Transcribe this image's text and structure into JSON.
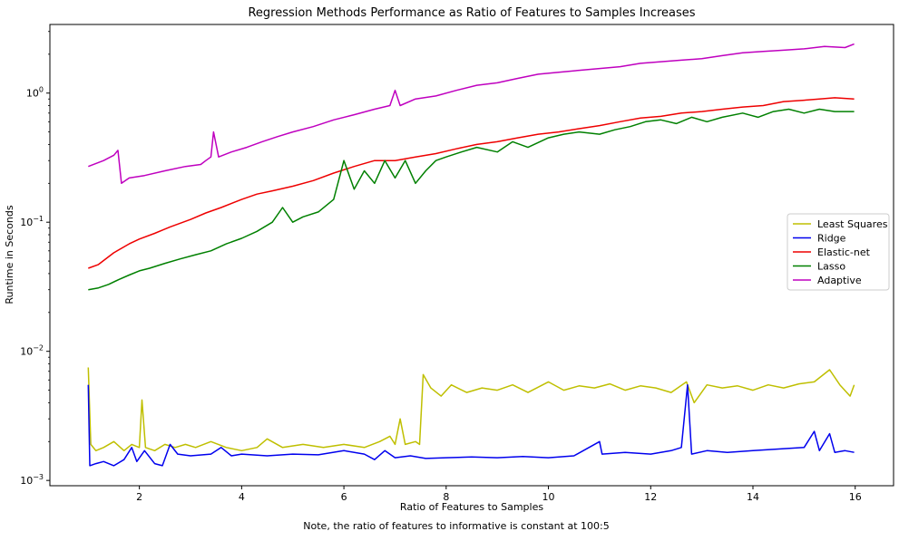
{
  "chart_data": {
    "type": "line",
    "title": "Regression Methods Performance as Ratio of Features to Samples Increases",
    "xlabel": "Ratio of Features to Samples",
    "ylabel": "Runtime in Seconds",
    "note": "Note, the ratio of features to informative is constant at 100:5",
    "xlim": [
      0.25,
      16.75
    ],
    "ylim": [
      0.00091,
      3.4
    ],
    "yscale": "log",
    "legend_position": "center-right",
    "x_ticks": [
      2,
      4,
      6,
      8,
      10,
      12,
      14,
      16
    ],
    "x_tick_labels": [
      "2",
      "4",
      "6",
      "8",
      "10",
      "12",
      "14",
      "16"
    ],
    "y_ticks": [
      0.001,
      0.01,
      0.1,
      1
    ],
    "y_tick_labels": [
      {
        "base": "10",
        "exp": "−3"
      },
      {
        "base": "10",
        "exp": "−2"
      },
      {
        "base": "10",
        "exp": "−1"
      },
      {
        "base": "10",
        "exp": "0"
      }
    ],
    "series": [
      {
        "name": "Least Squares",
        "color": "#bfbf00",
        "points": [
          [
            1.0,
            0.0075
          ],
          [
            1.05,
            0.0019
          ],
          [
            1.15,
            0.0017
          ],
          [
            1.3,
            0.0018
          ],
          [
            1.5,
            0.002
          ],
          [
            1.7,
            0.0017
          ],
          [
            1.85,
            0.0019
          ],
          [
            2.0,
            0.0018
          ],
          [
            2.05,
            0.0042
          ],
          [
            2.12,
            0.0018
          ],
          [
            2.3,
            0.0017
          ],
          [
            2.5,
            0.0019
          ],
          [
            2.7,
            0.0018
          ],
          [
            2.9,
            0.0019
          ],
          [
            3.1,
            0.0018
          ],
          [
            3.4,
            0.002
          ],
          [
            3.7,
            0.0018
          ],
          [
            4.0,
            0.0017
          ],
          [
            4.3,
            0.0018
          ],
          [
            4.5,
            0.0021
          ],
          [
            4.8,
            0.0018
          ],
          [
            5.2,
            0.0019
          ],
          [
            5.6,
            0.0018
          ],
          [
            6.0,
            0.0019
          ],
          [
            6.4,
            0.0018
          ],
          [
            6.7,
            0.002
          ],
          [
            6.9,
            0.0022
          ],
          [
            7.0,
            0.0019
          ],
          [
            7.1,
            0.003
          ],
          [
            7.2,
            0.0019
          ],
          [
            7.4,
            0.002
          ],
          [
            7.48,
            0.0019
          ],
          [
            7.55,
            0.0066
          ],
          [
            7.7,
            0.0052
          ],
          [
            7.9,
            0.0045
          ],
          [
            8.1,
            0.0055
          ],
          [
            8.4,
            0.0048
          ],
          [
            8.7,
            0.0052
          ],
          [
            9.0,
            0.005
          ],
          [
            9.3,
            0.0055
          ],
          [
            9.6,
            0.0048
          ],
          [
            10.0,
            0.0058
          ],
          [
            10.3,
            0.005
          ],
          [
            10.6,
            0.0054
          ],
          [
            10.9,
            0.0052
          ],
          [
            11.2,
            0.0056
          ],
          [
            11.5,
            0.005
          ],
          [
            11.8,
            0.0054
          ],
          [
            12.1,
            0.0052
          ],
          [
            12.4,
            0.0048
          ],
          [
            12.7,
            0.0058
          ],
          [
            12.85,
            0.004
          ],
          [
            13.1,
            0.0055
          ],
          [
            13.4,
            0.0052
          ],
          [
            13.7,
            0.0054
          ],
          [
            14.0,
            0.005
          ],
          [
            14.3,
            0.0055
          ],
          [
            14.6,
            0.0052
          ],
          [
            14.9,
            0.0056
          ],
          [
            15.2,
            0.0058
          ],
          [
            15.5,
            0.0072
          ],
          [
            15.7,
            0.0055
          ],
          [
            15.9,
            0.0045
          ],
          [
            15.98,
            0.0055
          ]
        ]
      },
      {
        "name": "Ridge",
        "color": "#0000ee",
        "points": [
          [
            1.0,
            0.0055
          ],
          [
            1.03,
            0.0013
          ],
          [
            1.15,
            0.00135
          ],
          [
            1.3,
            0.0014
          ],
          [
            1.5,
            0.0013
          ],
          [
            1.7,
            0.00145
          ],
          [
            1.85,
            0.0018
          ],
          [
            1.95,
            0.0014
          ],
          [
            2.1,
            0.0017
          ],
          [
            2.3,
            0.00135
          ],
          [
            2.45,
            0.0013
          ],
          [
            2.6,
            0.0019
          ],
          [
            2.75,
            0.0016
          ],
          [
            3.0,
            0.00155
          ],
          [
            3.4,
            0.0016
          ],
          [
            3.6,
            0.0018
          ],
          [
            3.8,
            0.00155
          ],
          [
            4.0,
            0.0016
          ],
          [
            4.5,
            0.00155
          ],
          [
            5.0,
            0.0016
          ],
          [
            5.5,
            0.00158
          ],
          [
            6.0,
            0.0017
          ],
          [
            6.4,
            0.0016
          ],
          [
            6.6,
            0.00145
          ],
          [
            6.8,
            0.0017
          ],
          [
            7.0,
            0.0015
          ],
          [
            7.3,
            0.00155
          ],
          [
            7.6,
            0.00148
          ],
          [
            8.0,
            0.0015
          ],
          [
            8.5,
            0.00152
          ],
          [
            9.0,
            0.0015
          ],
          [
            9.5,
            0.00153
          ],
          [
            10.0,
            0.0015
          ],
          [
            10.5,
            0.00155
          ],
          [
            11.0,
            0.002
          ],
          [
            11.05,
            0.0016
          ],
          [
            11.5,
            0.00165
          ],
          [
            12.0,
            0.0016
          ],
          [
            12.4,
            0.0017
          ],
          [
            12.6,
            0.0018
          ],
          [
            12.72,
            0.0055
          ],
          [
            12.8,
            0.0016
          ],
          [
            13.1,
            0.0017
          ],
          [
            13.5,
            0.00165
          ],
          [
            14.0,
            0.0017
          ],
          [
            14.5,
            0.00175
          ],
          [
            15.0,
            0.0018
          ],
          [
            15.2,
            0.0024
          ],
          [
            15.3,
            0.0017
          ],
          [
            15.5,
            0.0023
          ],
          [
            15.6,
            0.00165
          ],
          [
            15.8,
            0.0017
          ],
          [
            15.98,
            0.00165
          ]
        ]
      },
      {
        "name": "Elastic-net",
        "color": "#ee0000",
        "points": [
          [
            1.0,
            0.044
          ],
          [
            1.2,
            0.047
          ],
          [
            1.5,
            0.058
          ],
          [
            1.8,
            0.068
          ],
          [
            2.0,
            0.074
          ],
          [
            2.3,
            0.082
          ],
          [
            2.6,
            0.092
          ],
          [
            3.0,
            0.105
          ],
          [
            3.3,
            0.118
          ],
          [
            3.6,
            0.13
          ],
          [
            4.0,
            0.15
          ],
          [
            4.3,
            0.165
          ],
          [
            4.6,
            0.175
          ],
          [
            5.0,
            0.19
          ],
          [
            5.4,
            0.21
          ],
          [
            5.8,
            0.24
          ],
          [
            6.2,
            0.27
          ],
          [
            6.6,
            0.3
          ],
          [
            7.0,
            0.3
          ],
          [
            7.4,
            0.32
          ],
          [
            7.8,
            0.34
          ],
          [
            8.2,
            0.37
          ],
          [
            8.6,
            0.4
          ],
          [
            9.0,
            0.42
          ],
          [
            9.4,
            0.45
          ],
          [
            9.8,
            0.48
          ],
          [
            10.2,
            0.5
          ],
          [
            10.6,
            0.53
          ],
          [
            11.0,
            0.56
          ],
          [
            11.4,
            0.6
          ],
          [
            11.8,
            0.64
          ],
          [
            12.2,
            0.66
          ],
          [
            12.6,
            0.7
          ],
          [
            13.0,
            0.72
          ],
          [
            13.4,
            0.75
          ],
          [
            13.8,
            0.78
          ],
          [
            14.2,
            0.8
          ],
          [
            14.6,
            0.86
          ],
          [
            15.0,
            0.88
          ],
          [
            15.3,
            0.9
          ],
          [
            15.6,
            0.92
          ],
          [
            15.98,
            0.9
          ]
        ]
      },
      {
        "name": "Lasso",
        "color": "#008000",
        "points": [
          [
            1.0,
            0.03
          ],
          [
            1.2,
            0.031
          ],
          [
            1.4,
            0.033
          ],
          [
            1.6,
            0.036
          ],
          [
            1.8,
            0.039
          ],
          [
            2.0,
            0.042
          ],
          [
            2.2,
            0.044
          ],
          [
            2.5,
            0.048
          ],
          [
            2.8,
            0.052
          ],
          [
            3.1,
            0.056
          ],
          [
            3.4,
            0.06
          ],
          [
            3.7,
            0.068
          ],
          [
            4.0,
            0.075
          ],
          [
            4.3,
            0.085
          ],
          [
            4.6,
            0.1
          ],
          [
            4.8,
            0.13
          ],
          [
            5.0,
            0.1
          ],
          [
            5.2,
            0.11
          ],
          [
            5.5,
            0.12
          ],
          [
            5.8,
            0.15
          ],
          [
            6.0,
            0.3
          ],
          [
            6.2,
            0.18
          ],
          [
            6.4,
            0.25
          ],
          [
            6.6,
            0.2
          ],
          [
            6.8,
            0.3
          ],
          [
            7.0,
            0.22
          ],
          [
            7.2,
            0.3
          ],
          [
            7.4,
            0.2
          ],
          [
            7.6,
            0.25
          ],
          [
            7.8,
            0.3
          ],
          [
            8.0,
            0.32
          ],
          [
            8.3,
            0.35
          ],
          [
            8.6,
            0.38
          ],
          [
            9.0,
            0.35
          ],
          [
            9.3,
            0.42
          ],
          [
            9.6,
            0.38
          ],
          [
            10.0,
            0.45
          ],
          [
            10.3,
            0.48
          ],
          [
            10.6,
            0.5
          ],
          [
            11.0,
            0.48
          ],
          [
            11.3,
            0.52
          ],
          [
            11.6,
            0.55
          ],
          [
            11.9,
            0.6
          ],
          [
            12.2,
            0.62
          ],
          [
            12.5,
            0.58
          ],
          [
            12.8,
            0.65
          ],
          [
            13.1,
            0.6
          ],
          [
            13.4,
            0.65
          ],
          [
            13.8,
            0.7
          ],
          [
            14.1,
            0.65
          ],
          [
            14.4,
            0.72
          ],
          [
            14.7,
            0.75
          ],
          [
            15.0,
            0.7
          ],
          [
            15.3,
            0.75
          ],
          [
            15.6,
            0.72
          ],
          [
            15.98,
            0.72
          ]
        ]
      },
      {
        "name": "Adaptive",
        "color": "#bf00bf",
        "points": [
          [
            1.0,
            0.27
          ],
          [
            1.3,
            0.3
          ],
          [
            1.5,
            0.33
          ],
          [
            1.58,
            0.36
          ],
          [
            1.65,
            0.2
          ],
          [
            1.8,
            0.22
          ],
          [
            2.1,
            0.23
          ],
          [
            2.5,
            0.25
          ],
          [
            2.9,
            0.27
          ],
          [
            3.2,
            0.28
          ],
          [
            3.3,
            0.3
          ],
          [
            3.4,
            0.32
          ],
          [
            3.45,
            0.5
          ],
          [
            3.55,
            0.32
          ],
          [
            3.8,
            0.35
          ],
          [
            4.1,
            0.38
          ],
          [
            4.4,
            0.42
          ],
          [
            4.7,
            0.46
          ],
          [
            5.0,
            0.5
          ],
          [
            5.4,
            0.55
          ],
          [
            5.8,
            0.62
          ],
          [
            6.2,
            0.68
          ],
          [
            6.6,
            0.75
          ],
          [
            6.9,
            0.8
          ],
          [
            7.0,
            1.05
          ],
          [
            7.1,
            0.8
          ],
          [
            7.4,
            0.9
          ],
          [
            7.8,
            0.95
          ],
          [
            8.2,
            1.05
          ],
          [
            8.6,
            1.15
          ],
          [
            9.0,
            1.2
          ],
          [
            9.4,
            1.3
          ],
          [
            9.8,
            1.4
          ],
          [
            10.2,
            1.45
          ],
          [
            10.6,
            1.5
          ],
          [
            11.0,
            1.55
          ],
          [
            11.4,
            1.6
          ],
          [
            11.8,
            1.7
          ],
          [
            12.2,
            1.75
          ],
          [
            12.6,
            1.8
          ],
          [
            13.0,
            1.85
          ],
          [
            13.4,
            1.95
          ],
          [
            13.8,
            2.05
          ],
          [
            14.2,
            2.1
          ],
          [
            14.6,
            2.15
          ],
          [
            15.0,
            2.2
          ],
          [
            15.4,
            2.3
          ],
          [
            15.8,
            2.25
          ],
          [
            15.98,
            2.4
          ]
        ]
      }
    ]
  }
}
